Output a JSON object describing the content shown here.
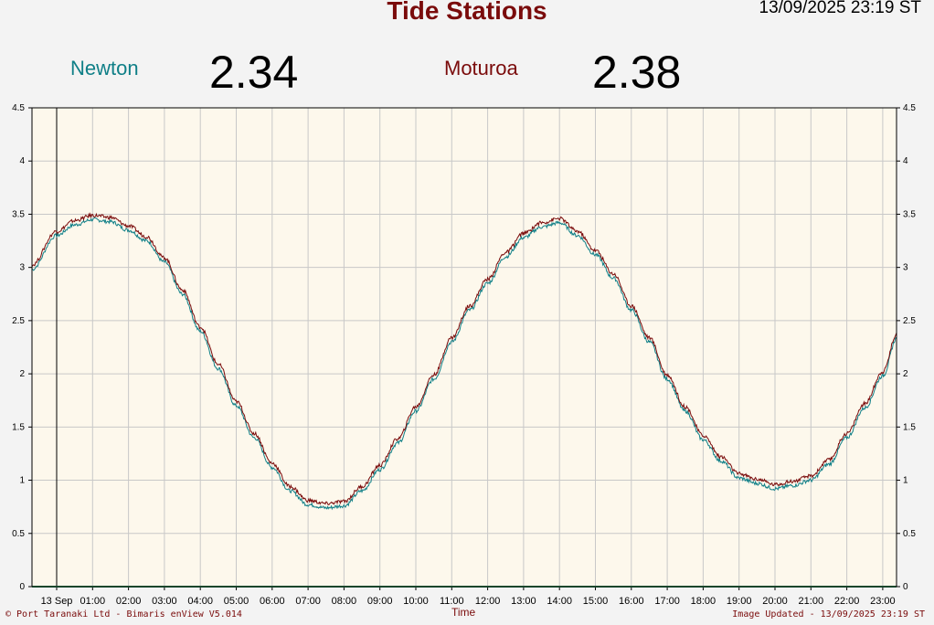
{
  "header": {
    "title": "Tide Stations",
    "timestamp": "13/09/2025 23:19 ST"
  },
  "readings": [
    {
      "name": "Newton",
      "value": "2.34",
      "color": "#0f7f87"
    },
    {
      "name": "Moturoa",
      "value": "2.38",
      "color": "#7a0b0b"
    }
  ],
  "footer": {
    "left": "© Port Taranaki Ltd - Bimaris enView V5.014",
    "right": "Image Updated - 13/09/2025 23:19 ST"
  },
  "chart_data": {
    "type": "line",
    "xlabel": "Time",
    "ylabel": "",
    "ylim": [
      0,
      4.5
    ],
    "yticks": [
      0,
      0.5,
      1,
      1.5,
      2,
      2.5,
      3,
      3.5,
      4,
      4.5
    ],
    "xlim_hours": [
      0,
      24.1
    ],
    "xticks": [
      "13 Sep",
      "01:00",
      "02:00",
      "03:00",
      "04:00",
      "05:00",
      "06:00",
      "07:00",
      "08:00",
      "09:00",
      "10:00",
      "11:00",
      "12:00",
      "13:00",
      "14:00",
      "15:00",
      "16:00",
      "17:00",
      "18:00",
      "19:00",
      "20:00",
      "21:00",
      "22:00",
      "23:00"
    ],
    "grid": true,
    "background": "#fdf8ec",
    "series": [
      {
        "name": "Newton",
        "color": "#0f7f87",
        "x_hours": [
          -0.7,
          0.0,
          0.5,
          1.0,
          1.5,
          2.0,
          2.5,
          3.0,
          3.5,
          4.0,
          4.5,
          5.0,
          5.5,
          6.0,
          6.5,
          7.0,
          7.5,
          8.0,
          8.5,
          9.0,
          9.5,
          10.0,
          10.5,
          11.0,
          11.5,
          12.0,
          12.5,
          13.0,
          13.5,
          14.0,
          14.5,
          15.0,
          15.5,
          16.0,
          16.5,
          17.0,
          17.5,
          18.0,
          18.5,
          19.0,
          19.5,
          20.0,
          20.5,
          21.0,
          21.5,
          22.0,
          22.5,
          23.0,
          23.4
        ],
        "values": [
          2.98,
          3.3,
          3.4,
          3.45,
          3.43,
          3.35,
          3.25,
          3.05,
          2.75,
          2.4,
          2.05,
          1.7,
          1.4,
          1.12,
          0.9,
          0.77,
          0.74,
          0.76,
          0.9,
          1.1,
          1.35,
          1.65,
          1.95,
          2.3,
          2.6,
          2.85,
          3.1,
          3.28,
          3.38,
          3.42,
          3.3,
          3.12,
          2.9,
          2.6,
          2.3,
          1.95,
          1.65,
          1.38,
          1.18,
          1.02,
          0.97,
          0.92,
          0.95,
          1.0,
          1.15,
          1.4,
          1.68,
          1.98,
          2.34
        ]
      },
      {
        "name": "Moturoa",
        "color": "#7a0b0b",
        "x_hours": [
          -0.7,
          0.0,
          0.5,
          1.0,
          1.5,
          2.0,
          2.5,
          3.0,
          3.5,
          4.0,
          4.5,
          5.0,
          5.5,
          6.0,
          6.5,
          7.0,
          7.5,
          8.0,
          8.5,
          9.0,
          9.5,
          10.0,
          10.5,
          11.0,
          11.5,
          12.0,
          12.5,
          13.0,
          13.5,
          14.0,
          14.5,
          15.0,
          15.5,
          16.0,
          16.5,
          17.0,
          17.5,
          18.0,
          18.5,
          19.0,
          19.5,
          20.0,
          20.5,
          21.0,
          21.5,
          22.0,
          22.5,
          23.0,
          23.4
        ],
        "values": [
          3.02,
          3.34,
          3.44,
          3.49,
          3.47,
          3.39,
          3.29,
          3.09,
          2.79,
          2.44,
          2.09,
          1.74,
          1.44,
          1.16,
          0.94,
          0.81,
          0.78,
          0.8,
          0.94,
          1.14,
          1.39,
          1.69,
          1.99,
          2.34,
          2.64,
          2.89,
          3.14,
          3.32,
          3.42,
          3.46,
          3.34,
          3.16,
          2.94,
          2.64,
          2.34,
          1.99,
          1.69,
          1.42,
          1.22,
          1.06,
          1.01,
          0.96,
          0.99,
          1.04,
          1.19,
          1.44,
          1.72,
          2.02,
          2.38
        ]
      }
    ]
  }
}
